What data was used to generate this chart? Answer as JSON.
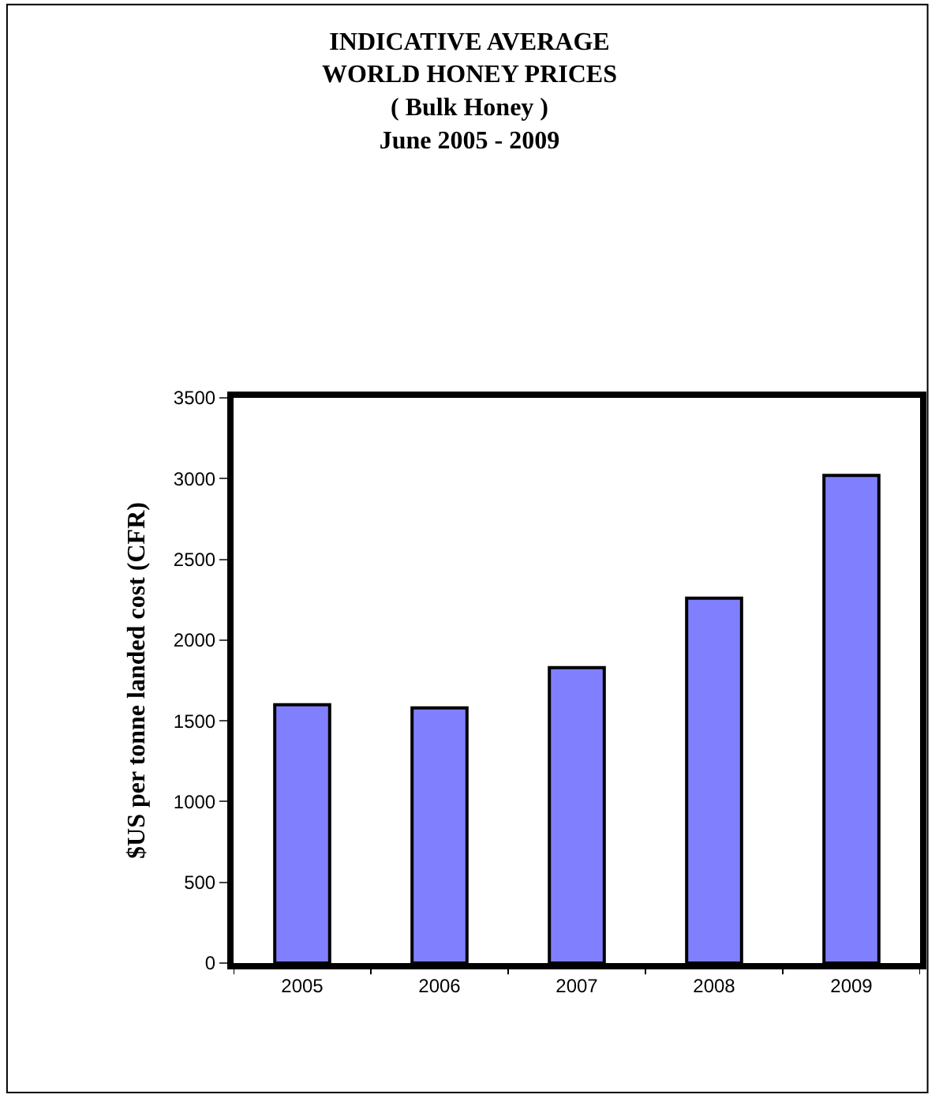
{
  "chart_data": {
    "type": "bar",
    "title": "INDICATIVE AVERAGE\nWORLD HONEY PRICES\n( Bulk Honey )\nJune 2005 - 2009",
    "ylabel": "$US per tonne landed cost (CFR)",
    "categories": [
      "2005",
      "2006",
      "2007",
      "2008",
      "2009"
    ],
    "values": [
      1600,
      1580,
      1830,
      2260,
      3020
    ],
    "color": "#8080ff",
    "ylim": [
      0,
      3500
    ],
    "yticks": [
      0,
      500,
      1000,
      1500,
      2000,
      2500,
      3000,
      3500
    ]
  }
}
